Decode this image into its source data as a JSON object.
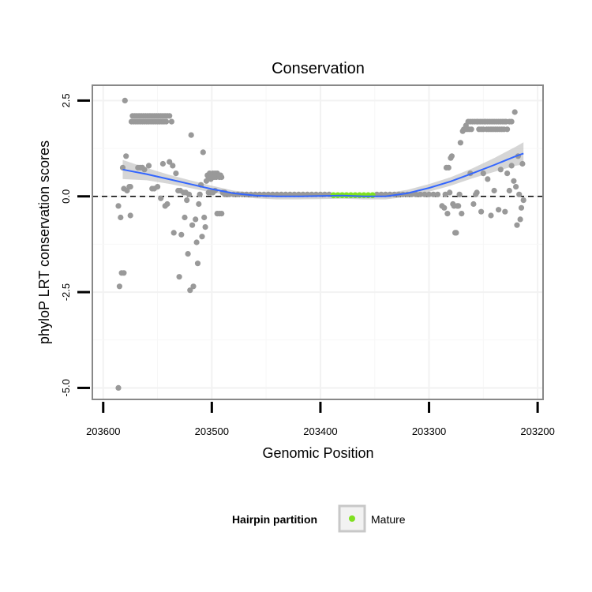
{
  "chart_data": {
    "type": "scatter",
    "title": "Conservation",
    "xlabel": "Genomic Position",
    "ylabel": "phyloP LRT conservation scores",
    "x_reversed": true,
    "xlim": [
      203610,
      203195
    ],
    "ylim": [
      -5.3,
      2.9
    ],
    "x_ticks": [
      203600,
      203500,
      203400,
      203300,
      203200
    ],
    "x_tick_labels": [
      "203600",
      "203500",
      "203400",
      "203300",
      "203200"
    ],
    "y_ticks": [
      2.5,
      0.0,
      -2.5,
      -5.0
    ],
    "y_tick_labels": [
      "2.5",
      "0.0",
      "-2.5",
      "-5.0"
    ],
    "grid": true,
    "reference_line": {
      "y": 0,
      "style": "dashed"
    },
    "point_color": "#999999",
    "mature_color": "#7FE020",
    "smooth_color": "#3366FF",
    "band_color": "#BBBBBB",
    "legend": {
      "title": "Hairpin partition",
      "position": "bottom",
      "entries": [
        "Mature"
      ]
    },
    "points": [
      [
        203586,
        -5.0
      ],
      [
        203585,
        -2.35
      ],
      [
        203584,
        -0.55
      ],
      [
        203586,
        -0.25
      ],
      [
        203583,
        -2.0
      ],
      [
        203581,
        -2.0
      ],
      [
        203582,
        0.75
      ],
      [
        203580,
        2.5
      ],
      [
        203579,
        1.05
      ],
      [
        203581,
        0.2
      ],
      [
        203578,
        0.15
      ],
      [
        203576,
        0.25
      ],
      [
        203575,
        -0.5
      ],
      [
        203575,
        0.25
      ],
      [
        203574,
        1.95
      ],
      [
        203572,
        1.95
      ],
      [
        203570,
        1.95
      ],
      [
        203568,
        1.95
      ],
      [
        203573,
        2.1
      ],
      [
        203571,
        2.1
      ],
      [
        203569,
        2.1
      ],
      [
        203567,
        2.1
      ],
      [
        203565,
        2.1
      ],
      [
        203563,
        2.1
      ],
      [
        203561,
        2.1
      ],
      [
        203559,
        2.1
      ],
      [
        203557,
        2.1
      ],
      [
        203555,
        2.1
      ],
      [
        203566,
        1.95
      ],
      [
        203564,
        1.95
      ],
      [
        203562,
        1.95
      ],
      [
        203560,
        1.95
      ],
      [
        203558,
        1.95
      ],
      [
        203556,
        1.95
      ],
      [
        203554,
        1.95
      ],
      [
        203552,
        1.95
      ],
      [
        203550,
        1.95
      ],
      [
        203548,
        1.95
      ],
      [
        203546,
        1.95
      ],
      [
        203544,
        1.95
      ],
      [
        203542,
        1.95
      ],
      [
        203553,
        2.1
      ],
      [
        203551,
        2.1
      ],
      [
        203549,
        2.1
      ],
      [
        203547,
        2.1
      ],
      [
        203545,
        2.1
      ],
      [
        203543,
        2.1
      ],
      [
        203541,
        2.1
      ],
      [
        203539,
        2.1
      ],
      [
        203537,
        1.95
      ],
      [
        203568,
        0.75
      ],
      [
        203566,
        0.75
      ],
      [
        203564,
        0.75
      ],
      [
        203562,
        0.7
      ],
      [
        203558,
        0.8
      ],
      [
        203555,
        0.2
      ],
      [
        203553,
        0.2
      ],
      [
        203550,
        0.25
      ],
      [
        203547,
        -0.05
      ],
      [
        203545,
        0.85
      ],
      [
        203543,
        -0.25
      ],
      [
        203541,
        -0.2
      ],
      [
        203539,
        0.9
      ],
      [
        203535,
        -0.95
      ],
      [
        203536,
        0.8
      ],
      [
        203533,
        0.6
      ],
      [
        203531,
        0.15
      ],
      [
        203530,
        -2.1
      ],
      [
        203529,
        0.15
      ],
      [
        203528,
        -1.0
      ],
      [
        203526,
        0.1
      ],
      [
        203525,
        -0.55
      ],
      [
        203524,
        0.1
      ],
      [
        203523,
        -0.1
      ],
      [
        203522,
        -1.5
      ],
      [
        203521,
        0.05
      ],
      [
        203520,
        -2.45
      ],
      [
        203519,
        1.6
      ],
      [
        203518,
        -0.75
      ],
      [
        203517,
        -2.35
      ],
      [
        203515,
        -0.6
      ],
      [
        203514,
        -1.2
      ],
      [
        203513,
        -1.75
      ],
      [
        203512,
        -0.2
      ],
      [
        203511,
        0.05
      ],
      [
        203510,
        0.3
      ],
      [
        203509,
        -1.05
      ],
      [
        203508,
        1.15
      ],
      [
        203507,
        -0.55
      ],
      [
        203506,
        -0.8
      ],
      [
        203505,
        0.4
      ],
      [
        203504,
        0.55
      ],
      [
        203503,
        0.5
      ],
      [
        203502,
        0.6
      ],
      [
        203501,
        0.45
      ],
      [
        203500,
        0.55
      ],
      [
        203499,
        0.6
      ],
      [
        203498,
        0.5
      ],
      [
        203497,
        0.6
      ],
      [
        203496,
        0.5
      ],
      [
        203495,
        0.6
      ],
      [
        203494,
        0.55
      ],
      [
        203493,
        0.5
      ],
      [
        203492,
        0.55
      ],
      [
        203491,
        0.5
      ],
      [
        203503,
        0.1
      ],
      [
        203501,
        0.1
      ],
      [
        203499,
        0.1
      ],
      [
        203497,
        0.15
      ],
      [
        203495,
        -0.45
      ],
      [
        203493,
        -0.45
      ],
      [
        203491,
        -0.45
      ],
      [
        203490,
        0.1
      ],
      [
        203489,
        0.1
      ],
      [
        203488,
        0.1
      ],
      [
        203488,
        0.05
      ],
      [
        203484,
        0.05
      ],
      [
        203480,
        0.05
      ],
      [
        203476,
        0.05
      ],
      [
        203472,
        0.05
      ],
      [
        203468,
        0.05
      ],
      [
        203464,
        0.05
      ],
      [
        203460,
        0.05
      ],
      [
        203456,
        0.05
      ],
      [
        203452,
        0.05
      ],
      [
        203448,
        0.05
      ],
      [
        203444,
        0.05
      ],
      [
        203440,
        0.05
      ],
      [
        203436,
        0.05
      ],
      [
        203432,
        0.05
      ],
      [
        203428,
        0.05
      ],
      [
        203424,
        0.05
      ],
      [
        203420,
        0.05
      ],
      [
        203416,
        0.05
      ],
      [
        203412,
        0.05
      ],
      [
        203408,
        0.05
      ],
      [
        203404,
        0.05
      ],
      [
        203400,
        0.05
      ],
      [
        203396,
        0.05
      ],
      [
        203392,
        0.05
      ],
      [
        203348,
        0.05
      ],
      [
        203344,
        0.05
      ],
      [
        203340,
        0.05
      ],
      [
        203336,
        0.05
      ],
      [
        203332,
        0.05
      ],
      [
        203328,
        0.05
      ],
      [
        203324,
        0.05
      ],
      [
        203320,
        0.05
      ],
      [
        203316,
        0.05
      ],
      [
        203312,
        0.05
      ],
      [
        203308,
        0.05
      ],
      [
        203304,
        0.05
      ],
      [
        203300,
        0.05
      ],
      [
        203296,
        0.05
      ],
      [
        203292,
        0.05
      ],
      [
        203288,
        -0.25
      ],
      [
        203286,
        -0.3
      ],
      [
        203285,
        0.05
      ],
      [
        203284,
        0.75
      ],
      [
        203283,
        -0.45
      ],
      [
        203282,
        0.75
      ],
      [
        203281,
        0.1
      ],
      [
        203280,
        1.0
      ],
      [
        203279,
        1.05
      ],
      [
        203278,
        -0.2
      ],
      [
        203277,
        -0.25
      ],
      [
        203276,
        -0.95
      ],
      [
        203275,
        -0.95
      ],
      [
        203274,
        -0.25
      ],
      [
        203273,
        -0.25
      ],
      [
        203272,
        0.05
      ],
      [
        203271,
        1.4
      ],
      [
        203270,
        -0.45
      ],
      [
        203269,
        1.7
      ],
      [
        203268,
        1.75
      ],
      [
        203267,
        1.75
      ],
      [
        203266,
        1.85
      ],
      [
        203265,
        1.75
      ],
      [
        203264,
        1.95
      ],
      [
        203263,
        1.75
      ],
      [
        203262,
        1.95
      ],
      [
        203261,
        1.75
      ],
      [
        203260,
        1.95
      ],
      [
        203259,
        -0.2
      ],
      [
        203258,
        1.95
      ],
      [
        203257,
        0.05
      ],
      [
        203256,
        1.95
      ],
      [
        203255,
        1.95
      ],
      [
        203254,
        1.75
      ],
      [
        203253,
        1.95
      ],
      [
        203252,
        1.75
      ],
      [
        203251,
        1.95
      ],
      [
        203250,
        1.75
      ],
      [
        203249,
        1.95
      ],
      [
        203248,
        1.95
      ],
      [
        203247,
        1.75
      ],
      [
        203246,
        1.95
      ],
      [
        203245,
        1.75
      ],
      [
        203244,
        1.95
      ],
      [
        203243,
        1.75
      ],
      [
        203242,
        1.95
      ],
      [
        203241,
        1.75
      ],
      [
        203240,
        1.95
      ],
      [
        203239,
        1.75
      ],
      [
        203238,
        1.95
      ],
      [
        203237,
        1.75
      ],
      [
        203236,
        1.95
      ],
      [
        203235,
        1.75
      ],
      [
        203234,
        1.95
      ],
      [
        203233,
        1.75
      ],
      [
        203232,
        1.95
      ],
      [
        203231,
        1.75
      ],
      [
        203230,
        1.95
      ],
      [
        203229,
        1.95
      ],
      [
        203228,
        1.75
      ],
      [
        203226,
        1.95
      ],
      [
        203224,
        1.95
      ],
      [
        203262,
        0.6
      ],
      [
        203256,
        0.1
      ],
      [
        203252,
        -0.4
      ],
      [
        203250,
        0.6
      ],
      [
        203246,
        0.45
      ],
      [
        203243,
        -0.5
      ],
      [
        203240,
        0.15
      ],
      [
        203236,
        -0.35
      ],
      [
        203234,
        0.7
      ],
      [
        203230,
        -0.4
      ],
      [
        203228,
        0.6
      ],
      [
        203226,
        0.15
      ],
      [
        203224,
        0.8
      ],
      [
        203222,
        0.4
      ],
      [
        203221,
        2.2
      ],
      [
        203220,
        0.25
      ],
      [
        203219,
        -0.75
      ],
      [
        203218,
        1.05
      ],
      [
        203217,
        0.05
      ],
      [
        203216,
        -0.6
      ],
      [
        203215,
        -0.3
      ],
      [
        203214,
        0.85
      ],
      [
        203213,
        -0.1
      ]
    ],
    "mature_points": [
      [
        203388,
        0.03
      ],
      [
        203384,
        0.03
      ],
      [
        203380,
        0.03
      ],
      [
        203376,
        0.03
      ],
      [
        203372,
        0.03
      ],
      [
        203368,
        0.03
      ],
      [
        203364,
        0.03
      ],
      [
        203360,
        0.03
      ],
      [
        203356,
        0.03
      ],
      [
        203352,
        0.03
      ]
    ],
    "smooth": {
      "x": [
        203582,
        203560,
        203540,
        203520,
        203500,
        203480,
        203460,
        203440,
        203420,
        203400,
        203380,
        203360,
        203340,
        203320,
        203300,
        203280,
        203260,
        203240,
        203220,
        203213
      ],
      "y": [
        0.7,
        0.58,
        0.45,
        0.32,
        0.19,
        0.08,
        0.02,
        0.0,
        0.0,
        0.01,
        0.02,
        0.0,
        0.0,
        0.08,
        0.22,
        0.39,
        0.6,
        0.82,
        1.05,
        1.12
      ],
      "lower": [
        0.45,
        0.42,
        0.33,
        0.22,
        0.1,
        0.01,
        -0.05,
        -0.08,
        -0.08,
        -0.07,
        -0.06,
        -0.08,
        -0.08,
        -0.01,
        0.12,
        0.28,
        0.47,
        0.64,
        0.8,
        0.83
      ],
      "upper": [
        0.95,
        0.74,
        0.57,
        0.42,
        0.28,
        0.15,
        0.09,
        0.08,
        0.08,
        0.09,
        0.1,
        0.08,
        0.08,
        0.17,
        0.32,
        0.5,
        0.73,
        1.0,
        1.3,
        1.41
      ]
    }
  }
}
